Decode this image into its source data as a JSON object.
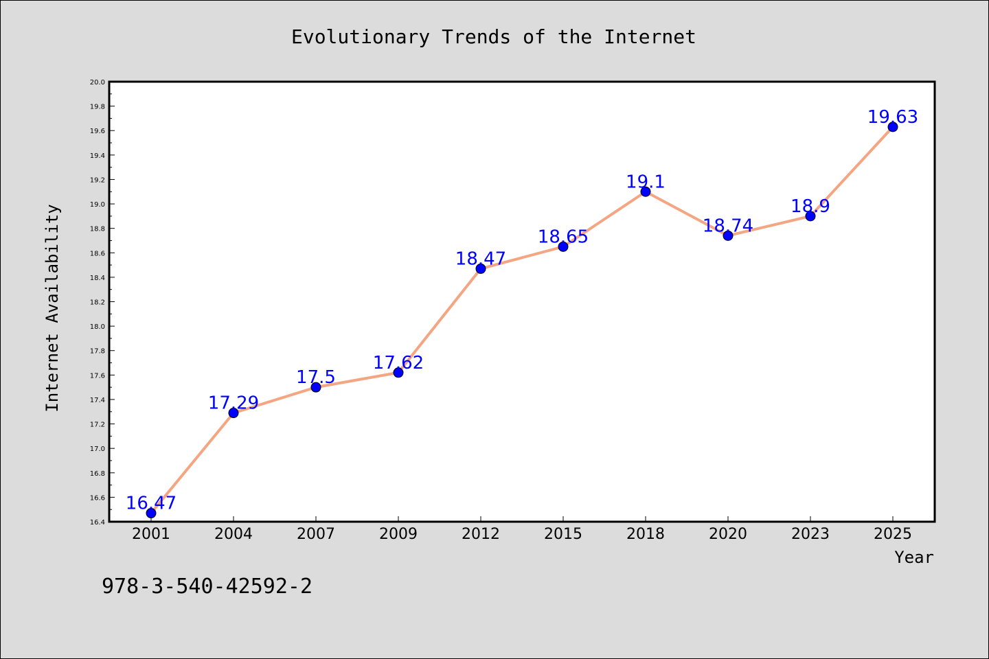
{
  "chart_data": {
    "type": "line",
    "title": "Evolutionary Trends of the Internet",
    "xlabel": "Year",
    "ylabel": "Internet Availability",
    "categories": [
      "2001",
      "2004",
      "2007",
      "2009",
      "2012",
      "2015",
      "2018",
      "2020",
      "2023",
      "2025"
    ],
    "series": [
      {
        "values": [
          16.47,
          17.29,
          17.5,
          17.62,
          18.47,
          18.65,
          19.1,
          18.74,
          18.9,
          19.63
        ],
        "data_labels": [
          "16.47",
          "17.29",
          "17.5",
          "17.62",
          "18.47",
          "18.65",
          "19.1",
          "18.74",
          "18.9",
          "19.63"
        ],
        "line_color": "#f4a582",
        "marker_color": "#0000ff"
      }
    ],
    "ylim": [
      16.4,
      20.0
    ],
    "yticks": [
      "16.4",
      "16.6",
      "16.8",
      "17.0",
      "17.2",
      "17.4",
      "17.6",
      "17.8",
      "18.0",
      "18.2",
      "18.4",
      "18.6",
      "18.8",
      "19.0",
      "19.2",
      "19.4",
      "19.6",
      "19.8",
      "20.0"
    ],
    "grid": false,
    "data_label_color": "#0000ff"
  },
  "footer": {
    "isbn": "978-3-540-42592-2"
  }
}
